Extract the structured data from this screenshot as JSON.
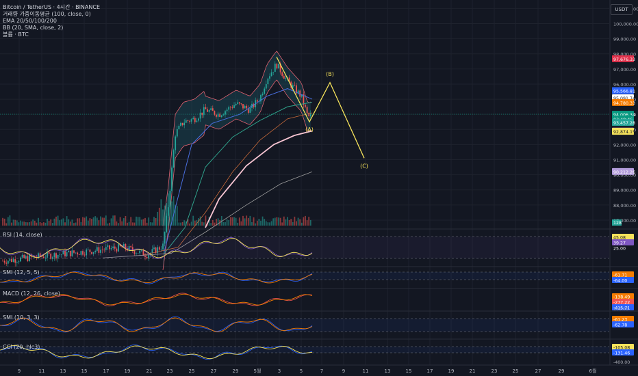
{
  "legend": {
    "title": "Bitcoin / TetherUS · 4시간 · BINANCE",
    "lines": [
      "거래량 가중이동평균 (100, close, 0)",
      "EMA 20/50/100/200",
      "BB (20, SMA, close, 2)",
      "볼륨 · BTC"
    ]
  },
  "currency_button": "USDT",
  "colors": {
    "bg": "#131722",
    "grid": "#1e222d",
    "up": "#26a69a",
    "down": "#ef5350",
    "wave": "#f5e25b",
    "bb_line": "#e0616f",
    "bb_fill": "#1d5b6b",
    "ema20": "#4a6fe0",
    "ema50": "#2fa08a",
    "ema100": "#c96b3a",
    "ema200": "#9e9e9e",
    "vwma": "#f7c5d2"
  },
  "chart_data": {
    "type": "line",
    "x_tick_labels": [
      "9",
      "11",
      "13",
      "15",
      "17",
      "19",
      "21",
      "23",
      "25",
      "27",
      "29",
      "5월",
      "3",
      "5",
      "7",
      "9",
      "11",
      "13",
      "15",
      "17",
      "19",
      "21",
      "23",
      "25",
      "27",
      "29",
      "6월"
    ],
    "y_tick_labels": [
      "101,000.00",
      "100,000.00",
      "99,000.00",
      "98,000.00",
      "97,000.00",
      "96,000.00",
      "95,000.00",
      "94,000.00",
      "93,000.00",
      "92,000.00",
      "91,000.00",
      "90,000.00",
      "89,000.00",
      "88,000.00",
      "87,000.00"
    ],
    "ylim": [
      86500,
      101200
    ],
    "price_labels": [
      {
        "text": "97,676.33",
        "color": "#e0314b",
        "value": 97676.33
      },
      {
        "text": "95,566.81",
        "color": "#2962ff",
        "value": 95566.81
      },
      {
        "text": "95,091.74",
        "color": "#ffffff",
        "value": 95091.74
      },
      {
        "text": "94,780.33",
        "color": "#f57c00",
        "value": 94780.33
      },
      {
        "text": "94,006.34",
        "color": "#089981",
        "value": 94006.34
      },
      {
        "text": "03:48:46",
        "color": "#089981",
        "value": 93700
      },
      {
        "text": "93,457.28",
        "color": "#26a69a",
        "value": 93457.28
      },
      {
        "text": "92,889.78",
        "color": "#f7a9b8",
        "value": 92889.78
      },
      {
        "text": "92,874.15",
        "color": "#f5e25b",
        "value": 92874.15
      },
      {
        "text": "90,212.26",
        "color": "#b39ddb",
        "value": 90212.26
      }
    ],
    "volume_label": "128",
    "wave_points": [
      {
        "label": "(A)",
        "x_day": 5.7,
        "y": 93500
      },
      {
        "label": "(B)",
        "x_day": 7.5,
        "y": 96100
      },
      {
        "label": "(C)",
        "x_day": 10.0,
        "y": 91100
      }
    ],
    "indicators": [
      {
        "name": "RSI (14, close)",
        "values": [
          "45.08",
          "39.27",
          "25.00"
        ],
        "colors": [
          "#f5e25b",
          "#7e57c2",
          "#131722"
        ]
      },
      {
        "name": "SMI (12, 5, 5)",
        "values": [
          "-61.71",
          "-64.00"
        ],
        "colors": [
          "#f57c00",
          "#2962ff"
        ]
      },
      {
        "name": "MACD (12, 26, close)",
        "values": [
          "-138.49",
          "-277.22",
          "-415.71"
        ],
        "colors": [
          "#f57c00",
          "#ef5350",
          "#2962ff"
        ]
      },
      {
        "name": "SMI (10, 3, 3)",
        "values": [
          "-61.23",
          "-62.78"
        ],
        "colors": [
          "#f57c00",
          "#2962ff"
        ]
      },
      {
        "name": "CCI (20, hlc3)",
        "values": [
          "-105.08",
          "-131.46"
        ],
        "colors": [
          "#f5e25b",
          "#2962ff"
        ]
      }
    ],
    "subpane_axis_labels": {
      "macd_extra": "100.00",
      "cci_bottom": "-400.00"
    }
  }
}
